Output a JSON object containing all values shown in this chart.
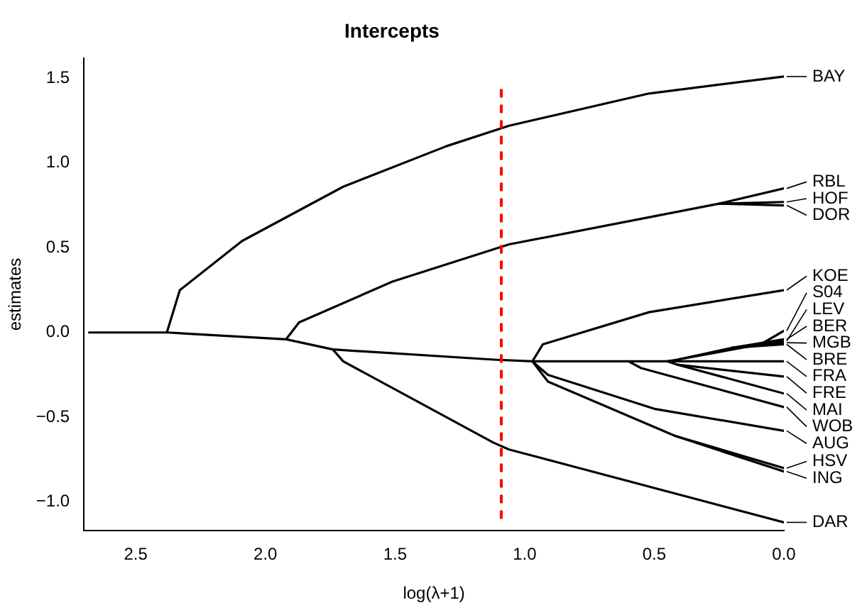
{
  "chart_data": {
    "type": "line",
    "title": "Intercepts",
    "xlabel": "log(λ+1)",
    "ylabel": "estimates",
    "xlim": [
      2.7,
      0
    ],
    "ylim": [
      -1.17,
      1.62
    ],
    "xticks": [
      2.5,
      {
        "value": 2,
        "label": "2.0"
      },
      1.5,
      {
        "value": 1,
        "label": "1.0"
      },
      0.5,
      {
        "value": 0,
        "label": "0.0"
      }
    ],
    "yticks": [
      {
        "value": -1,
        "label": "−1.0"
      },
      {
        "value": -0.5,
        "label": "−0.5"
      },
      {
        "value": 0,
        "label": "0.0"
      },
      0.5,
      {
        "value": 1,
        "label": "1.0"
      },
      1.5
    ],
    "grid": false,
    "legend": "right",
    "marker": "none",
    "line_style": "solid",
    "ref_lines": [
      {
        "axis": "x",
        "value": 1.09,
        "color": "#ff0000",
        "line_style": "dashed"
      }
    ],
    "series": [
      {
        "name": "BAY",
        "color": "#000000",
        "x": [
          2.68,
          2.38,
          2.33,
          2.09,
          1.7,
          1.3,
          1.06,
          0.52,
          0
        ],
        "values": [
          0,
          0,
          0.25,
          0.54,
          0.86,
          1.1,
          1.22,
          1.41,
          1.51
        ]
      },
      {
        "name": "RBL",
        "color": "#000000",
        "x": [
          2.38,
          1.92,
          1.87,
          1.51,
          1.06,
          0.25,
          0
        ],
        "values": [
          0,
          -0.04,
          0.06,
          0.3,
          0.52,
          0.76,
          0.85
        ]
      },
      {
        "name": "HOF",
        "color": "#000000",
        "x": [
          0.25,
          0
        ],
        "values": [
          0.76,
          0.77
        ]
      },
      {
        "name": "DOR",
        "color": "#000000",
        "x": [
          0.25,
          0
        ],
        "values": [
          0.76,
          0.75
        ]
      },
      {
        "name": "KOE",
        "color": "#000000",
        "x": [
          1.74,
          1.12,
          0.97,
          0.93,
          0.52,
          0
        ],
        "values": [
          -0.1,
          -0.16,
          -0.17,
          -0.07,
          0.12,
          0.25
        ]
      },
      {
        "name": "S04",
        "color": "#000000",
        "x": [
          0.41,
          0.09,
          0
        ],
        "values": [
          -0.16,
          -0.07,
          0.01
        ]
      },
      {
        "name": "LEV",
        "color": "#000000",
        "x": [
          0.45,
          0.41,
          0.2,
          0
        ],
        "values": [
          -0.17,
          -0.16,
          -0.09,
          -0.05
        ]
      },
      {
        "name": "BER",
        "color": "#000000",
        "x": [
          0.2,
          0
        ],
        "values": [
          -0.09,
          -0.04
        ]
      },
      {
        "name": "MGB",
        "color": "#000000",
        "x": [
          0.2,
          0
        ],
        "values": [
          -0.09,
          -0.06
        ]
      },
      {
        "name": "BRE",
        "color": "#000000",
        "x": [
          0.2,
          0
        ],
        "values": [
          -0.09,
          -0.07
        ]
      },
      {
        "name": "FRA",
        "color": "#000000",
        "x": [
          0.97,
          0.6,
          0
        ],
        "values": [
          -0.17,
          -0.17,
          -0.17
        ]
      },
      {
        "name": "FRE",
        "color": "#000000",
        "x": [
          0.45,
          0.41,
          0
        ],
        "values": [
          -0.17,
          -0.19,
          -0.26
        ]
      },
      {
        "name": "MAI",
        "color": "#000000",
        "x": [
          0.41,
          0
        ],
        "values": [
          -0.19,
          -0.36
        ]
      },
      {
        "name": "WOB",
        "color": "#000000",
        "x": [
          0.6,
          0.55,
          0
        ],
        "values": [
          -0.17,
          -0.21,
          -0.44
        ]
      },
      {
        "name": "AUG",
        "color": "#000000",
        "x": [
          0.97,
          0.91,
          0.5,
          0
        ],
        "values": [
          -0.17,
          -0.25,
          -0.45,
          -0.58
        ]
      },
      {
        "name": "HSV",
        "color": "#000000",
        "x": [
          0.97,
          0.91,
          0.42,
          0
        ],
        "values": [
          -0.17,
          -0.29,
          -0.61,
          -0.8
        ]
      },
      {
        "name": "ING",
        "color": "#000000",
        "x": [
          0.42,
          0
        ],
        "values": [
          -0.61,
          -0.82
        ]
      },
      {
        "name": "DAR",
        "color": "#000000",
        "x": [
          1.92,
          1.74,
          1.7,
          1.12,
          1.06,
          0
        ],
        "values": [
          -0.04,
          -0.1,
          -0.17,
          -0.65,
          -0.69,
          -1.12
        ]
      }
    ]
  }
}
